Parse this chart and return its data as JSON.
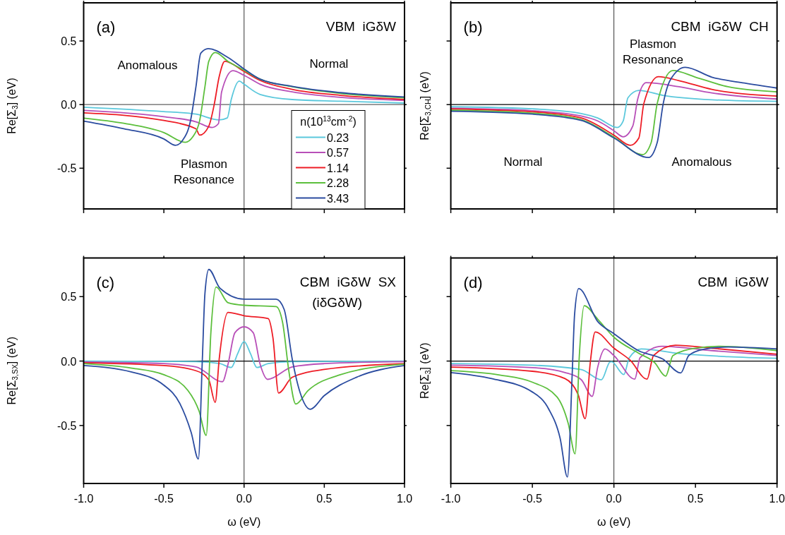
{
  "chart_data": [
    {
      "type": "line",
      "title": "(a)",
      "subtitle": "VBM  iGδW",
      "ylabel": "Re[Σ$_{3}$] (eV)",
      "legend_title": "n(10$^{13}$cm$^{-2}$)",
      "legend": "bottom right",
      "tick_labels": "y",
      "xlim": [
        -1,
        1
      ],
      "ylim": [
        -0.82,
        0.8
      ],
      "xticks": [
        {
          "value": -1,
          "label": null
        },
        {
          "value": -0.5,
          "label": null
        },
        {
          "value": 0,
          "label": null
        },
        {
          "value": 0.5,
          "label": null
        },
        {
          "value": 1,
          "label": null
        }
      ],
      "yticks": [
        {
          "value": -0.5,
          "label": "-0.5"
        },
        {
          "value": 0,
          "label": "0.0"
        },
        {
          "value": 0.5,
          "label": "0.5"
        }
      ],
      "ref_lines": [
        {
          "axis": "x",
          "value": 0,
          "color": "#000000"
        },
        {
          "axis": "y",
          "value": 0,
          "color": "#606060"
        }
      ],
      "annotations": [
        "Anomalous",
        "Normal",
        "Plasmon\nResonance"
      ],
      "series": [
        {
          "name": "0.23",
          "color": "#5bc8dc",
          "x": [
            -1,
            -0.5,
            -0.3,
            -0.155,
            -0.105,
            -0.08,
            -0.03,
            0,
            0.1,
            0.3,
            0.6,
            1
          ],
          "values": [
            -0.02,
            -0.055,
            -0.075,
            -0.12,
            -0.105,
            0.04,
            0.185,
            0.16,
            0.08,
            0.04,
            0.027,
            0.012
          ]
        },
        {
          "name": "0.57",
          "color": "#b84fb8",
          "x": [
            -1,
            -0.5,
            -0.3,
            -0.2,
            -0.16,
            -0.14,
            -0.07,
            0,
            0.1,
            0.3,
            0.6,
            1
          ],
          "values": [
            -0.045,
            -0.095,
            -0.135,
            -0.18,
            -0.15,
            0.1,
            0.267,
            0.23,
            0.16,
            0.1,
            0.057,
            0.033
          ]
        },
        {
          "name": "1.14",
          "color": "#ee1c25",
          "x": [
            -1,
            -0.5,
            -0.3,
            -0.277,
            -0.22,
            -0.187,
            -0.155,
            -0.12,
            0,
            0.1,
            0.3,
            0.6,
            1
          ],
          "values": [
            -0.065,
            -0.125,
            -0.19,
            -0.24,
            -0.17,
            -0.005,
            0.22,
            0.34,
            0.26,
            0.19,
            0.12,
            0.073,
            0.04
          ]
        },
        {
          "name": "2.28",
          "color": "#5cbf3c",
          "x": [
            -1,
            -0.75,
            -0.5,
            -0.367,
            -0.318,
            -0.277,
            -0.244,
            -0.22,
            -0.18,
            -0.1,
            0,
            0.1,
            0.3,
            0.6,
            1
          ],
          "values": [
            -0.106,
            -0.147,
            -0.22,
            -0.296,
            -0.25,
            -0.127,
            0.14,
            0.34,
            0.41,
            0.34,
            0.27,
            0.2,
            0.14,
            0.088,
            0.053
          ]
        },
        {
          "name": "3.43",
          "color": "#2b4ca0",
          "x": [
            -1,
            -0.75,
            -0.5,
            -0.428,
            -0.383,
            -0.334,
            -0.3,
            -0.27,
            -0.223,
            -0.1,
            0,
            0.1,
            0.3,
            0.6,
            1
          ],
          "values": [
            -0.13,
            -0.19,
            -0.27,
            -0.32,
            -0.28,
            -0.127,
            0.14,
            0.404,
            0.44,
            0.37,
            0.28,
            0.2,
            0.143,
            0.094,
            0.06
          ]
        }
      ]
    },
    {
      "type": "line",
      "title": "(b)",
      "subtitle": "CBM  iGδW  CH",
      "ylabel": "Re[Σ$_{3,CH}$] (eV)",
      "tick_labels": false,
      "xlim": [
        -1,
        1
      ],
      "ylim": [
        -0.82,
        0.8
      ],
      "xticks": [
        {
          "value": -1,
          "label": null
        },
        {
          "value": -0.5,
          "label": null
        },
        {
          "value": 0,
          "label": null
        },
        {
          "value": 0.5,
          "label": null
        },
        {
          "value": 1,
          "label": null
        }
      ],
      "yticks": [
        {
          "value": -0.5,
          "label": null
        },
        {
          "value": 0,
          "label": null
        },
        {
          "value": 0.5,
          "label": null
        }
      ],
      "ref_lines": [
        {
          "axis": "x",
          "value": 0
        },
        {
          "axis": "y",
          "value": 0
        }
      ],
      "annotations": [
        "Plasmon\nResonance",
        "Normal",
        "Anomalous"
      ],
      "series": [
        {
          "color": "#5bc8dc",
          "x": [
            -1,
            -0.5,
            -0.2,
            -0.1,
            0.02,
            0.057,
            0.086,
            0.153,
            0.3,
            0.6,
            1
          ],
          "values": [
            -0.017,
            -0.033,
            -0.07,
            -0.105,
            -0.18,
            -0.128,
            0.054,
            0.111,
            0.073,
            0.038,
            0.025
          ]
        },
        {
          "color": "#b84fb8",
          "x": [
            -1,
            -0.5,
            -0.2,
            -0.1,
            0,
            0.057,
            0.116,
            0.146,
            0.198,
            0.4,
            0.6,
            1
          ],
          "values": [
            -0.029,
            -0.048,
            -0.09,
            -0.128,
            -0.205,
            -0.253,
            -0.167,
            0.044,
            0.172,
            0.14,
            0.092,
            0.044
          ]
        },
        {
          "color": "#ee1c25",
          "x": [
            -1,
            -0.5,
            -0.2,
            0,
            0.1,
            0.153,
            0.183,
            0.273,
            0.4,
            0.6,
            1
          ],
          "values": [
            -0.034,
            -0.056,
            -0.105,
            -0.24,
            -0.32,
            -0.262,
            0.006,
            0.22,
            0.188,
            0.12,
            0.067
          ]
        },
        {
          "color": "#5cbf3c",
          "x": [
            -1,
            -0.5,
            -0.2,
            0,
            0.176,
            0.228,
            0.265,
            0.362,
            0.5,
            0.7,
            1
          ],
          "values": [
            -0.044,
            -0.067,
            -0.119,
            -0.255,
            -0.393,
            -0.3,
            0.006,
            0.268,
            0.216,
            0.14,
            0.1
          ]
        },
        {
          "color": "#2b4ca0",
          "x": [
            -1,
            -0.5,
            -0.2,
            0,
            0.213,
            0.265,
            0.302,
            0.347,
            0.437,
            0.6,
            0.8,
            1
          ],
          "values": [
            -0.052,
            -0.075,
            -0.125,
            -0.262,
            -0.416,
            -0.3,
            0.006,
            0.197,
            0.293,
            0.216,
            0.169,
            0.13
          ]
        }
      ]
    },
    {
      "type": "line",
      "title": "(c)",
      "subtitle": "CBM  iGδW  SX\n(iδGδW)",
      "xlabel": "ω (eV)",
      "ylabel": "Re[Σ$_{3,SX}$] (eV)",
      "xlim": [
        -1,
        1
      ],
      "ylim": [
        -0.95,
        0.8
      ],
      "xticks": [
        {
          "value": -1,
          "label": "-1.0"
        },
        {
          "value": -0.5,
          "label": "-0.5"
        },
        {
          "value": 0,
          "label": "0.0"
        },
        {
          "value": 0.5,
          "label": "0.5"
        },
        {
          "value": 1,
          "label": "1.0"
        }
      ],
      "yticks": [
        {
          "value": -0.5,
          "label": "-0.5"
        },
        {
          "value": 0,
          "label": "0.0"
        },
        {
          "value": 0.5,
          "label": "0.5"
        }
      ],
      "ref_lines": [
        {
          "axis": "x",
          "value": 0
        },
        {
          "axis": "y",
          "value": 0
        }
      ],
      "series": [
        {
          "color": "#5bc8dc",
          "x": [
            -1,
            -0.3,
            -0.15,
            -0.08,
            -0.04,
            0,
            0.04,
            0.08,
            0.15,
            0.3,
            1
          ],
          "values": [
            0,
            -0.004,
            -0.02,
            -0.05,
            0.057,
            0.152,
            0.057,
            -0.05,
            -0.02,
            -0.004,
            0
          ]
        },
        {
          "color": "#b84fb8",
          "x": [
            -1,
            -0.5,
            -0.3,
            -0.135,
            -0.1,
            -0.057,
            0,
            0.057,
            0.1,
            0.147,
            0.3,
            0.5,
            1
          ],
          "values": [
            -0.008,
            -0.02,
            -0.045,
            -0.16,
            -0.024,
            0.22,
            0.266,
            0.22,
            -0.024,
            -0.142,
            -0.045,
            -0.02,
            -0.004
          ]
        },
        {
          "color": "#ee1c25",
          "x": [
            -1,
            -0.5,
            -0.3,
            -0.22,
            -0.18,
            -0.155,
            -0.1,
            0,
            0.15,
            0.18,
            0.215,
            0.3,
            0.5,
            1
          ],
          "values": [
            -0.014,
            -0.035,
            -0.075,
            -0.146,
            -0.32,
            0.016,
            0.378,
            0.352,
            0.33,
            0.18,
            -0.248,
            -0.126,
            -0.065,
            -0.02
          ]
        },
        {
          "color": "#5cbf3c",
          "x": [
            -1,
            -0.7,
            -0.5,
            -0.35,
            -0.28,
            -0.236,
            -0.207,
            -0.174,
            -0.1,
            0,
            0.2,
            0.24,
            0.28,
            0.322,
            0.4,
            0.6,
            1
          ],
          "values": [
            -0.02,
            -0.055,
            -0.106,
            -0.228,
            -0.39,
            -0.577,
            0.22,
            0.575,
            0.453,
            0.433,
            0.423,
            0.3,
            -0.085,
            -0.333,
            -0.228,
            -0.106,
            -0.024
          ]
        },
        {
          "color": "#2b4ca0",
          "x": [
            -1,
            -0.7,
            -0.5,
            -0.4,
            -0.33,
            -0.285,
            -0.26,
            -0.244,
            -0.22,
            -0.15,
            0,
            0.2,
            0.25,
            0.3,
            0.35,
            0.412,
            0.5,
            0.7,
            1
          ],
          "values": [
            -0.035,
            -0.085,
            -0.187,
            -0.33,
            -0.553,
            -0.76,
            0.016,
            0.524,
            0.711,
            0.565,
            0.48,
            0.48,
            0.4,
            0.016,
            -0.248,
            -0.374,
            -0.268,
            -0.126,
            -0.035
          ]
        }
      ]
    },
    {
      "type": "line",
      "title": "(d)",
      "subtitle": "CBM  iGδW",
      "xlabel": "ω (eV)",
      "ylabel": "Re[Σ$_{3}$] (eV)",
      "tick_labels": "x",
      "xlim": [
        -1,
        1
      ],
      "ylim": [
        -0.95,
        0.8
      ],
      "xticks": [
        {
          "value": -1,
          "label": "-1.0"
        },
        {
          "value": -0.5,
          "label": "-0.5"
        },
        {
          "value": 0,
          "label": "0.0"
        },
        {
          "value": 0.5,
          "label": "0.5"
        },
        {
          "value": 1,
          "label": "1.0"
        }
      ],
      "yticks": [
        {
          "value": -0.5,
          "label": null
        },
        {
          "value": 0,
          "label": null
        },
        {
          "value": 0.5,
          "label": null
        }
      ],
      "ref_lines": [
        {
          "axis": "x",
          "value": 0
        },
        {
          "axis": "y",
          "value": 0
        }
      ],
      "series": [
        {
          "color": "#5bc8dc",
          "x": [
            -1,
            -0.5,
            -0.2,
            -0.077,
            -0.025,
            -0.015,
            0.061,
            0.094,
            0.168,
            0.4,
            0.7,
            1
          ],
          "values": [
            -0.019,
            -0.032,
            -0.066,
            -0.145,
            -0.008,
            -0.004,
            -0.104,
            0.025,
            0.094,
            0.058,
            0.034,
            0.021
          ]
        },
        {
          "color": "#b84fb8",
          "x": [
            -1,
            -0.5,
            -0.3,
            -0.2,
            -0.133,
            -0.1,
            -0.055,
            0,
            0.128,
            0.16,
            0.295,
            0.6,
            1
          ],
          "values": [
            -0.032,
            -0.051,
            -0.089,
            -0.145,
            -0.274,
            -0.051,
            0.094,
            0.043,
            -0.14,
            0.025,
            0.115,
            0.081,
            0.043
          ]
        },
        {
          "color": "#ee1c25",
          "x": [
            -1,
            -0.5,
            -0.3,
            -0.22,
            -0.176,
            -0.145,
            -0.115,
            0,
            0.1,
            0.203,
            0.243,
            0.377,
            0.6,
            1
          ],
          "values": [
            -0.047,
            -0.079,
            -0.136,
            -0.258,
            -0.447,
            -0.013,
            0.226,
            0.1,
            0.006,
            -0.14,
            0.043,
            0.123,
            0.1,
            0.053
          ]
        },
        {
          "color": "#5cbf3c",
          "x": [
            -1,
            -0.7,
            -0.5,
            -0.35,
            -0.28,
            -0.238,
            -0.212,
            -0.182,
            -0.1,
            0,
            0.15,
            0.25,
            0.317,
            0.362,
            0.5,
            0.65,
            1
          ],
          "values": [
            -0.074,
            -0.108,
            -0.164,
            -0.277,
            -0.485,
            -0.72,
            0.043,
            0.43,
            0.326,
            0.185,
            0.062,
            -0.013,
            -0.117,
            0.043,
            0.1,
            0.115,
            0.081
          ]
        },
        {
          "color": "#2b4ca0",
          "x": [
            -1,
            -0.75,
            -0.5,
            -0.4,
            -0.33,
            -0.285,
            -0.256,
            -0.241,
            -0.216,
            -0.1,
            0,
            0.15,
            0.3,
            0.41,
            0.459,
            0.55,
            0.7,
            1
          ],
          "values": [
            -0.089,
            -0.136,
            -0.24,
            -0.372,
            -0.598,
            -0.9,
            -0.108,
            0.364,
            0.562,
            0.308,
            0.213,
            0.081,
            0.015,
            -0.092,
            0.043,
            0.091,
            0.109,
            0.094
          ]
        }
      ]
    }
  ]
}
